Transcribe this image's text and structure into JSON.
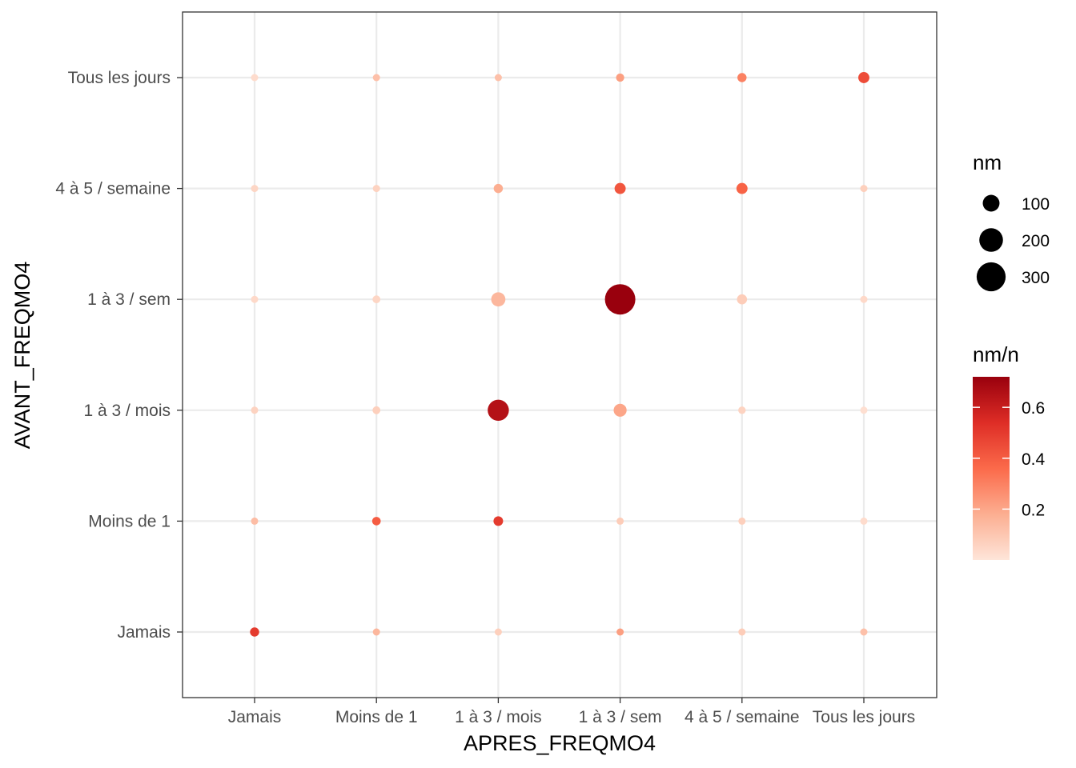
{
  "chart_data": {
    "type": "scatter",
    "xlabel": "APRES_FREQMO4",
    "ylabel": "AVANT_FREQMO4",
    "x_categories": [
      "Jamais",
      "Moins de 1",
      "1 à 3 / mois",
      "1 à 3 / sem",
      "4 à 5 / semaine",
      "Tous les jours"
    ],
    "y_categories": [
      "Jamais",
      "Moins de 1",
      "1 à 3 / mois",
      "1 à 3 / sem",
      "4 à 5 / semaine",
      "Tous les jours"
    ],
    "size_legend": {
      "title": "nm",
      "breaks": [
        100,
        200,
        300
      ]
    },
    "color_legend": {
      "title": "nm/n",
      "breaks": [
        0.2,
        0.4,
        0.6
      ],
      "range": [
        0,
        0.72
      ],
      "low_color": "#fee0d2",
      "high_color": "#99000d"
    },
    "grid": true,
    "points": [
      {
        "x": "Jamais",
        "y": "Tous les jours",
        "nm": 3,
        "ratio": 0.03
      },
      {
        "x": "Moins de 1",
        "y": "Tous les jours",
        "nm": 17,
        "ratio": 0.12
      },
      {
        "x": "1 à 3 / mois",
        "y": "Tous les jours",
        "nm": 17,
        "ratio": 0.12
      },
      {
        "x": "1 à 3 / sem",
        "y": "Tous les jours",
        "nm": 24,
        "ratio": 0.22
      },
      {
        "x": "4 à 5 / semaine",
        "y": "Tous les jours",
        "nm": 30,
        "ratio": 0.3
      },
      {
        "x": "Tous les jours",
        "y": "Tous les jours",
        "nm": 44,
        "ratio": 0.45
      },
      {
        "x": "Jamais",
        "y": "4 à 5 / semaine",
        "nm": 7,
        "ratio": 0.05
      },
      {
        "x": "Moins de 1",
        "y": "4 à 5 / semaine",
        "nm": 10,
        "ratio": 0.06
      },
      {
        "x": "1 à 3 / mois",
        "y": "4 à 5 / semaine",
        "nm": 30,
        "ratio": 0.18
      },
      {
        "x": "1 à 3 / sem",
        "y": "4 à 5 / semaine",
        "nm": 44,
        "ratio": 0.42
      },
      {
        "x": "4 à 5 / semaine",
        "y": "4 à 5 / semaine",
        "nm": 44,
        "ratio": 0.38
      },
      {
        "x": "Tous les jours",
        "y": "4 à 5 / semaine",
        "nm": 10,
        "ratio": 0.07
      },
      {
        "x": "Jamais",
        "y": "1 à 3 / sem",
        "nm": 12,
        "ratio": 0.04
      },
      {
        "x": "Moins de 1",
        "y": "1 à 3 / sem",
        "nm": 22,
        "ratio": 0.05
      },
      {
        "x": "1 à 3 / mois",
        "y": "1 à 3 / sem",
        "nm": 72,
        "ratio": 0.15
      },
      {
        "x": "1 à 3 / sem",
        "y": "1 à 3 / sem",
        "nm": 330,
        "ratio": 0.72
      },
      {
        "x": "4 à 5 / semaine",
        "y": "1 à 3 / sem",
        "nm": 36,
        "ratio": 0.08
      },
      {
        "x": "Tous les jours",
        "y": "1 à 3 / sem",
        "nm": 12,
        "ratio": 0.04
      },
      {
        "x": "Jamais",
        "y": "1 à 3 / mois",
        "nm": 14,
        "ratio": 0.06
      },
      {
        "x": "Moins de 1",
        "y": "1 à 3 / mois",
        "nm": 22,
        "ratio": 0.07
      },
      {
        "x": "1 à 3 / mois",
        "y": "1 à 3 / mois",
        "nm": 160,
        "ratio": 0.65
      },
      {
        "x": "1 à 3 / sem",
        "y": "1 à 3 / mois",
        "nm": 60,
        "ratio": 0.2
      },
      {
        "x": "4 à 5 / semaine",
        "y": "1 à 3 / mois",
        "nm": 20,
        "ratio": 0.06
      },
      {
        "x": "Tous les jours",
        "y": "1 à 3 / mois",
        "nm": 2,
        "ratio": 0.02
      },
      {
        "x": "Jamais",
        "y": "Moins de 1",
        "nm": 11,
        "ratio": 0.13
      },
      {
        "x": "Moins de 1",
        "y": "Moins de 1",
        "nm": 26,
        "ratio": 0.4
      },
      {
        "x": "1 à 3 / mois",
        "y": "Moins de 1",
        "nm": 33,
        "ratio": 0.5
      },
      {
        "x": "1 à 3 / sem",
        "y": "Moins de 1",
        "nm": 10,
        "ratio": 0.08
      },
      {
        "x": "4 à 5 / semaine",
        "y": "Moins de 1",
        "nm": 10,
        "ratio": 0.07
      },
      {
        "x": "Tous les jours",
        "y": "Moins de 1",
        "nm": 3,
        "ratio": 0.03
      },
      {
        "x": "Jamais",
        "y": "Jamais",
        "nm": 30,
        "ratio": 0.5
      },
      {
        "x": "Moins de 1",
        "y": "Jamais",
        "nm": 10,
        "ratio": 0.15
      },
      {
        "x": "1 à 3 / mois",
        "y": "Jamais",
        "nm": 7,
        "ratio": 0.07
      },
      {
        "x": "1 à 3 / sem",
        "y": "Jamais",
        "nm": 12,
        "ratio": 0.22
      },
      {
        "x": "4 à 5 / semaine",
        "y": "Jamais",
        "nm": 8,
        "ratio": 0.08
      },
      {
        "x": "Tous les jours",
        "y": "Jamais",
        "nm": 10,
        "ratio": 0.12
      }
    ]
  }
}
